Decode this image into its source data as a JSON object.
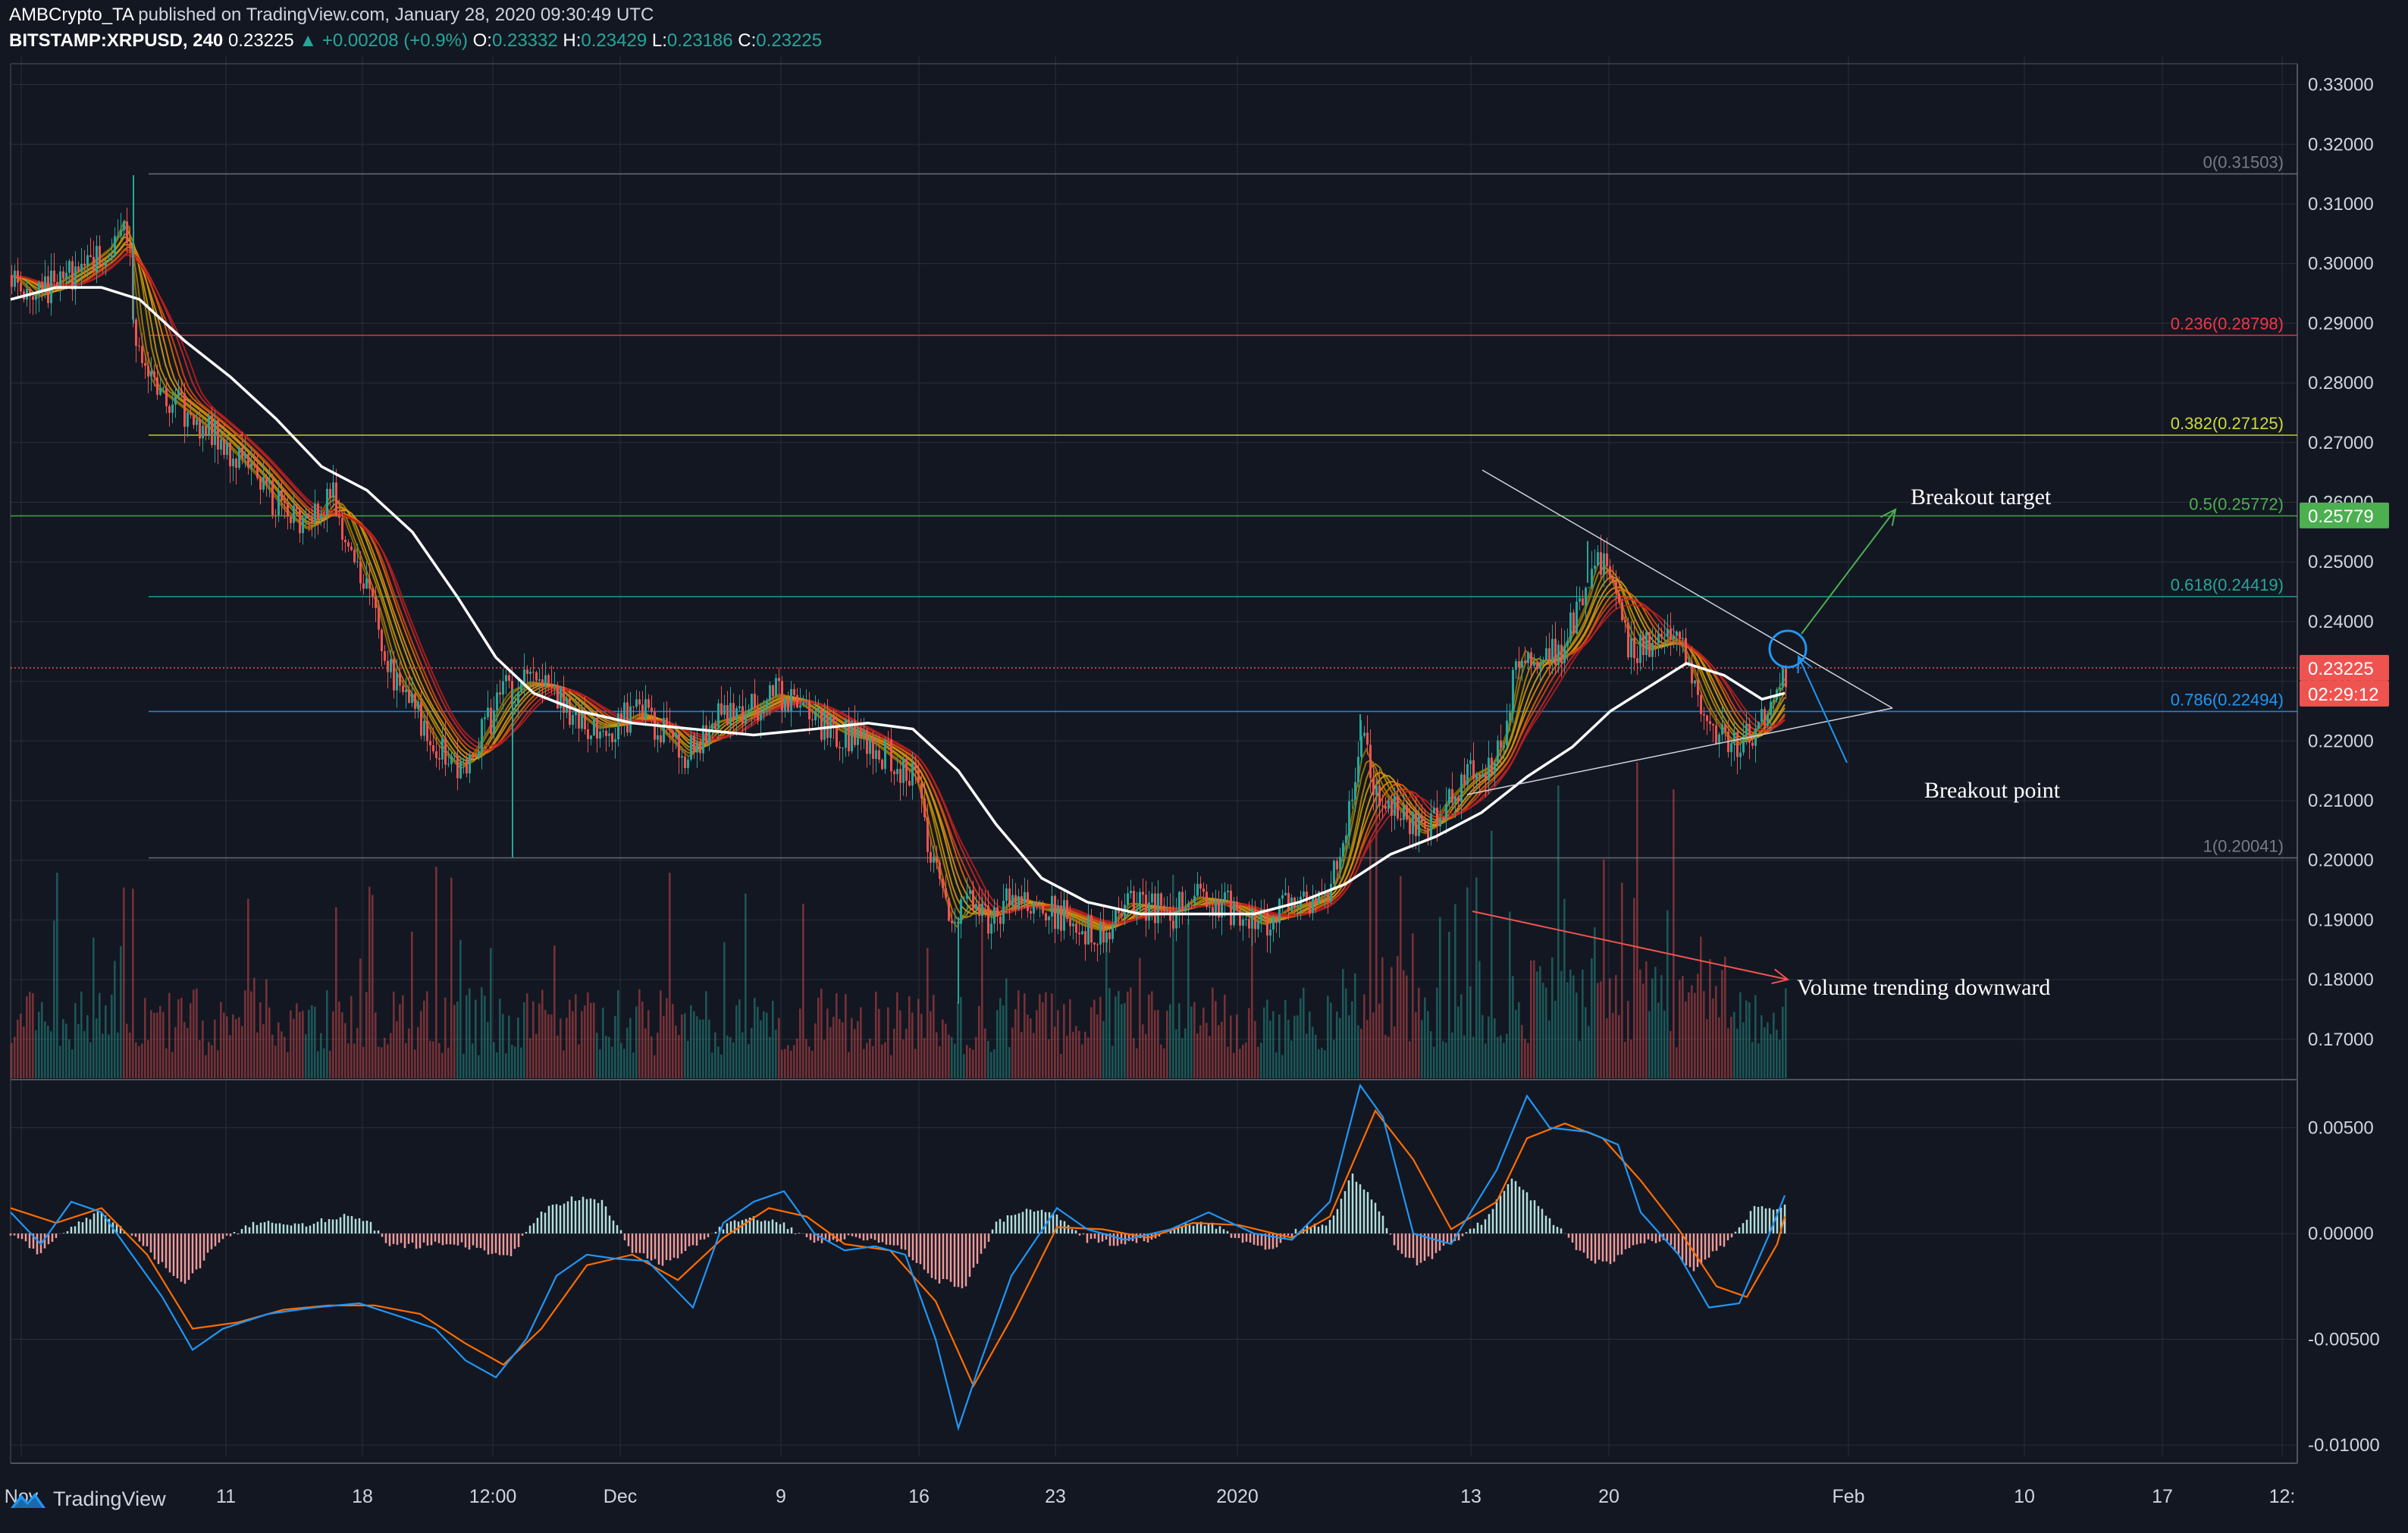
{
  "header": {
    "publisher": "AMBCrypto_TA",
    "published_text": "published on TradingView.com, January 28, 2020 09:30:49 UTC",
    "symbol": "BITSTAMP:XRPUSD, 240",
    "last": "0.23225",
    "change": "▲ +0.00208 (+0.9%)",
    "o_label": "O:",
    "o": "0.23332",
    "h_label": "H:",
    "h": "0.23429",
    "l_label": "L:",
    "l": "0.23186",
    "c_label": "C:",
    "c": "0.23225"
  },
  "footer": {
    "brand": "TradingView"
  },
  "colors": {
    "background": "#131722",
    "grid": "#2a2e39",
    "up": "#26a69a",
    "down": "#ef5350",
    "text": "#d1d4dc",
    "ema_white": "#ffffff"
  },
  "chart_data": [
    {
      "type": "candlestick",
      "title": "",
      "price_axis": {
        "ticks": [
          "0.33000",
          "0.32000",
          "0.31000",
          "0.30000",
          "0.29000",
          "0.28000",
          "0.27000",
          "0.26000",
          "0.25000",
          "0.24000",
          "0.23000",
          "0.22000",
          "0.21000",
          "0.20000",
          "0.19000",
          "0.18000",
          "0.17000"
        ],
        "range": [
          0.1635,
          0.3335
        ],
        "last_price_label": "0.23225",
        "countdown_label": "02:29:12",
        "highlight_label": "0.25779"
      },
      "time_axis": {
        "labels": [
          "Nov",
          "11",
          "18",
          "12:00",
          "Dec",
          "9",
          "16",
          "23",
          "2020",
          "13",
          "20",
          "Feb",
          "10",
          "17",
          "12:"
        ]
      },
      "price_path": [
        [
          0,
          0.298
        ],
        [
          30,
          0.294
        ],
        [
          60,
          0.297
        ],
        [
          100,
          0.3
        ],
        [
          130,
          0.303
        ],
        [
          150,
          0.309
        ],
        [
          162,
          0.29
        ],
        [
          180,
          0.28
        ],
        [
          210,
          0.277
        ],
        [
          240,
          0.274
        ],
        [
          270,
          0.271
        ],
        [
          300,
          0.267
        ],
        [
          330,
          0.263
        ],
        [
          360,
          0.258
        ],
        [
          390,
          0.255
        ],
        [
          420,
          0.262
        ],
        [
          450,
          0.252
        ],
        [
          480,
          0.242
        ],
        [
          500,
          0.232
        ],
        [
          530,
          0.226
        ],
        [
          560,
          0.219
        ],
        [
          590,
          0.215
        ],
        [
          620,
          0.221
        ],
        [
          650,
          0.228
        ],
        [
          680,
          0.23
        ],
        [
          710,
          0.229
        ],
        [
          740,
          0.225
        ],
        [
          770,
          0.222
        ],
        [
          800,
          0.223
        ],
        [
          830,
          0.225
        ],
        [
          860,
          0.221
        ],
        [
          890,
          0.217
        ],
        [
          920,
          0.223
        ],
        [
          950,
          0.224
        ],
        [
          980,
          0.226
        ],
        [
          1010,
          0.228
        ],
        [
          1040,
          0.226
        ],
        [
          1070,
          0.223
        ],
        [
          1100,
          0.221
        ],
        [
          1130,
          0.22
        ],
        [
          1160,
          0.217
        ],
        [
          1190,
          0.214
        ],
        [
          1210,
          0.202
        ],
        [
          1240,
          0.188
        ],
        [
          1260,
          0.193
        ],
        [
          1290,
          0.19
        ],
        [
          1320,
          0.194
        ],
        [
          1350,
          0.192
        ],
        [
          1380,
          0.191
        ],
        [
          1410,
          0.189
        ],
        [
          1440,
          0.188
        ],
        [
          1470,
          0.193
        ],
        [
          1500,
          0.192
        ],
        [
          1530,
          0.191
        ],
        [
          1560,
          0.194
        ],
        [
          1590,
          0.193
        ],
        [
          1620,
          0.191
        ],
        [
          1650,
          0.189
        ],
        [
          1680,
          0.192
        ],
        [
          1710,
          0.193
        ],
        [
          1740,
          0.195
        ],
        [
          1760,
          0.205
        ],
        [
          1780,
          0.22
        ],
        [
          1800,
          0.212
        ],
        [
          1830,
          0.208
        ],
        [
          1860,
          0.204
        ],
        [
          1890,
          0.21
        ],
        [
          1920,
          0.214
        ],
        [
          1950,
          0.216
        ],
        [
          1970,
          0.222
        ],
        [
          1990,
          0.236
        ],
        [
          2010,
          0.232
        ],
        [
          2040,
          0.235
        ],
        [
          2070,
          0.242
        ],
        [
          2090,
          0.251
        ],
        [
          2110,
          0.246
        ],
        [
          2130,
          0.237
        ],
        [
          2160,
          0.235
        ],
        [
          2190,
          0.238
        ],
        [
          2210,
          0.233
        ],
        [
          2230,
          0.226
        ],
        [
          2250,
          0.222
        ],
        [
          2270,
          0.219
        ],
        [
          2290,
          0.221
        ],
        [
          2310,
          0.224
        ],
        [
          2330,
          0.23
        ],
        [
          2350,
          0.232
        ]
      ],
      "ema_white": [
        [
          0,
          0.294
        ],
        [
          60,
          0.296
        ],
        [
          120,
          0.296
        ],
        [
          170,
          0.294
        ],
        [
          230,
          0.287
        ],
        [
          290,
          0.281
        ],
        [
          350,
          0.274
        ],
        [
          410,
          0.266
        ],
        [
          470,
          0.262
        ],
        [
          530,
          0.255
        ],
        [
          590,
          0.244
        ],
        [
          640,
          0.234
        ],
        [
          690,
          0.228
        ],
        [
          750,
          0.225
        ],
        [
          820,
          0.223
        ],
        [
          900,
          0.222
        ],
        [
          980,
          0.221
        ],
        [
          1060,
          0.222
        ],
        [
          1130,
          0.223
        ],
        [
          1190,
          0.222
        ],
        [
          1250,
          0.215
        ],
        [
          1300,
          0.206
        ],
        [
          1360,
          0.197
        ],
        [
          1420,
          0.193
        ],
        [
          1490,
          0.191
        ],
        [
          1560,
          0.191
        ],
        [
          1640,
          0.191
        ],
        [
          1700,
          0.193
        ],
        [
          1760,
          0.196
        ],
        [
          1820,
          0.201
        ],
        [
          1880,
          0.204
        ],
        [
          1940,
          0.208
        ],
        [
          2000,
          0.214
        ],
        [
          2060,
          0.219
        ],
        [
          2110,
          0.225
        ],
        [
          2160,
          0.229
        ],
        [
          2210,
          0.233
        ],
        [
          2260,
          0.231
        ],
        [
          2310,
          0.227
        ],
        [
          2340,
          0.228
        ]
      ],
      "fibonacci": [
        {
          "level": "0",
          "label": "0(0.31503)",
          "price": 0.31503,
          "color": "#787b86"
        },
        {
          "level": "0.236",
          "label": "0.236(0.28798)",
          "price": 0.28798,
          "color": "#f23645"
        },
        {
          "level": "0.382",
          "label": "0.382(0.27125)",
          "price": 0.27125,
          "color": "#cddc39"
        },
        {
          "level": "0.5",
          "label": "0.5(0.25772)",
          "price": 0.25772,
          "color": "#4caf50"
        },
        {
          "level": "0.618",
          "label": "0.618(0.24419)",
          "price": 0.24419,
          "color": "#26a69a"
        },
        {
          "level": "0.786",
          "label": "0.786(0.22494)",
          "price": 0.22494,
          "color": "#2196f3"
        },
        {
          "level": "1",
          "label": "1(0.20041)",
          "price": 0.20041,
          "color": "#787b86"
        }
      ],
      "annotations": [
        {
          "text": "Breakout target"
        },
        {
          "text": "Breakout point"
        },
        {
          "text": "Volume trending downward"
        }
      ]
    },
    {
      "type": "bar",
      "title": "",
      "ylim": [
        -0.0105,
        0.0072
      ],
      "ticks": [
        "0.00500",
        "0.00000",
        "-0.00500",
        "-0.01000"
      ],
      "macd_hist": [
        [
          0,
          0.0
        ],
        [
          40,
          -0.001
        ],
        [
          80,
          0.0004
        ],
        [
          120,
          0.001
        ],
        [
          160,
          0.0
        ],
        [
          200,
          -0.0015
        ],
        [
          230,
          -0.0025
        ],
        [
          270,
          -0.0005
        ],
        [
          320,
          0.0005
        ],
        [
          380,
          0.0004
        ],
        [
          440,
          0.0008
        ],
        [
          470,
          0.0006
        ],
        [
          500,
          -0.0005
        ],
        [
          540,
          -0.0006
        ],
        [
          580,
          -0.0004
        ],
        [
          620,
          -0.0008
        ],
        [
          660,
          -0.001
        ],
        [
          700,
          0.001
        ],
        [
          740,
          0.0017
        ],
        [
          780,
          0.0015
        ],
        [
          820,
          -0.0008
        ],
        [
          860,
          -0.0015
        ],
        [
          900,
          -0.0006
        ],
        [
          940,
          0.0003
        ],
        [
          980,
          0.0008
        ],
        [
          1020,
          0.0004
        ],
        [
          1060,
          -0.0004
        ],
        [
          1100,
          -0.0002
        ],
        [
          1140,
          -0.0003
        ],
        [
          1180,
          -0.0008
        ],
        [
          1220,
          -0.0022
        ],
        [
          1260,
          -0.0025
        ],
        [
          1300,
          0.0005
        ],
        [
          1340,
          0.0012
        ],
        [
          1380,
          0.0008
        ],
        [
          1420,
          -0.0003
        ],
        [
          1460,
          -0.0005
        ],
        [
          1500,
          -0.0003
        ],
        [
          1540,
          0.0003
        ],
        [
          1580,
          0.0005
        ],
        [
          1620,
          -0.0003
        ],
        [
          1660,
          -0.0008
        ],
        [
          1700,
          0.0002
        ],
        [
          1740,
          0.0005
        ],
        [
          1770,
          0.0028
        ],
        [
          1800,
          0.0015
        ],
        [
          1830,
          -0.0008
        ],
        [
          1860,
          -0.0015
        ],
        [
          1900,
          -0.0004
        ],
        [
          1940,
          0.0005
        ],
        [
          1980,
          0.0025
        ],
        [
          2010,
          0.0015
        ],
        [
          2040,
          0.0003
        ],
        [
          2080,
          -0.0012
        ],
        [
          2110,
          -0.0015
        ],
        [
          2140,
          -0.0005
        ],
        [
          2180,
          -0.0003
        ],
        [
          2220,
          -0.0018
        ],
        [
          2260,
          -0.0005
        ],
        [
          2300,
          0.0012
        ],
        [
          2340,
          0.0013
        ]
      ],
      "macd_line": [
        [
          0,
          0.001
        ],
        [
          40,
          -0.0005
        ],
        [
          80,
          0.0015
        ],
        [
          120,
          0.001
        ],
        [
          160,
          -0.001
        ],
        [
          200,
          -0.003
        ],
        [
          240,
          -0.0055
        ],
        [
          280,
          -0.0045
        ],
        [
          340,
          -0.0038
        ],
        [
          400,
          -0.0035
        ],
        [
          460,
          -0.0033
        ],
        [
          520,
          -0.004
        ],
        [
          560,
          -0.0045
        ],
        [
          600,
          -0.006
        ],
        [
          640,
          -0.0068
        ],
        [
          680,
          -0.005
        ],
        [
          720,
          -0.002
        ],
        [
          760,
          -0.001
        ],
        [
          800,
          -0.0012
        ],
        [
          840,
          -0.0013
        ],
        [
          900,
          -0.0035
        ],
        [
          940,
          0.0005
        ],
        [
          980,
          0.0015
        ],
        [
          1020,
          0.002
        ],
        [
          1060,
          0.0
        ],
        [
          1100,
          -0.0008
        ],
        [
          1140,
          -0.0006
        ],
        [
          1180,
          -0.001
        ],
        [
          1220,
          -0.005
        ],
        [
          1250,
          -0.0092
        ],
        [
          1280,
          -0.006
        ],
        [
          1320,
          -0.002
        ],
        [
          1380,
          0.0012
        ],
        [
          1420,
          0.0002
        ],
        [
          1470,
          -0.0003
        ],
        [
          1530,
          0.0002
        ],
        [
          1580,
          0.001
        ],
        [
          1640,
          0.0
        ],
        [
          1690,
          -0.0003
        ],
        [
          1740,
          0.0015
        ],
        [
          1780,
          0.007
        ],
        [
          1810,
          0.0055
        ],
        [
          1850,
          0.0
        ],
        [
          1900,
          -0.0005
        ],
        [
          1960,
          0.003
        ],
        [
          2000,
          0.0065
        ],
        [
          2030,
          0.005
        ],
        [
          2080,
          0.0048
        ],
        [
          2120,
          0.0042
        ],
        [
          2150,
          0.001
        ],
        [
          2200,
          -0.001
        ],
        [
          2240,
          -0.0035
        ],
        [
          2280,
          -0.0033
        ],
        [
          2320,
          0.0
        ],
        [
          2340,
          0.0018
        ]
      ],
      "signal_line": [
        [
          0,
          0.0012
        ],
        [
          60,
          0.0005
        ],
        [
          120,
          0.0012
        ],
        [
          180,
          -0.001
        ],
        [
          240,
          -0.0045
        ],
        [
          300,
          -0.0042
        ],
        [
          360,
          -0.0036
        ],
        [
          420,
          -0.0034
        ],
        [
          480,
          -0.0034
        ],
        [
          540,
          -0.0038
        ],
        [
          600,
          -0.0052
        ],
        [
          650,
          -0.0062
        ],
        [
          700,
          -0.0045
        ],
        [
          760,
          -0.0015
        ],
        [
          820,
          -0.001
        ],
        [
          880,
          -0.0022
        ],
        [
          940,
          -0.0002
        ],
        [
          1000,
          0.0012
        ],
        [
          1050,
          0.0008
        ],
        [
          1100,
          -0.0005
        ],
        [
          1160,
          -0.0008
        ],
        [
          1220,
          -0.0032
        ],
        [
          1270,
          -0.0072
        ],
        [
          1320,
          -0.004
        ],
        [
          1380,
          0.0003
        ],
        [
          1440,
          0.0002
        ],
        [
          1500,
          -0.0002
        ],
        [
          1560,
          0.0005
        ],
        [
          1620,
          0.0004
        ],
        [
          1690,
          -0.0002
        ],
        [
          1740,
          0.0008
        ],
        [
          1800,
          0.0058
        ],
        [
          1850,
          0.0035
        ],
        [
          1900,
          0.0002
        ],
        [
          1960,
          0.0015
        ],
        [
          2000,
          0.0045
        ],
        [
          2050,
          0.0052
        ],
        [
          2100,
          0.0045
        ],
        [
          2150,
          0.0025
        ],
        [
          2200,
          0.0002
        ],
        [
          2250,
          -0.0025
        ],
        [
          2290,
          -0.003
        ],
        [
          2330,
          -0.0005
        ],
        [
          2340,
          0.0008
        ]
      ]
    }
  ]
}
